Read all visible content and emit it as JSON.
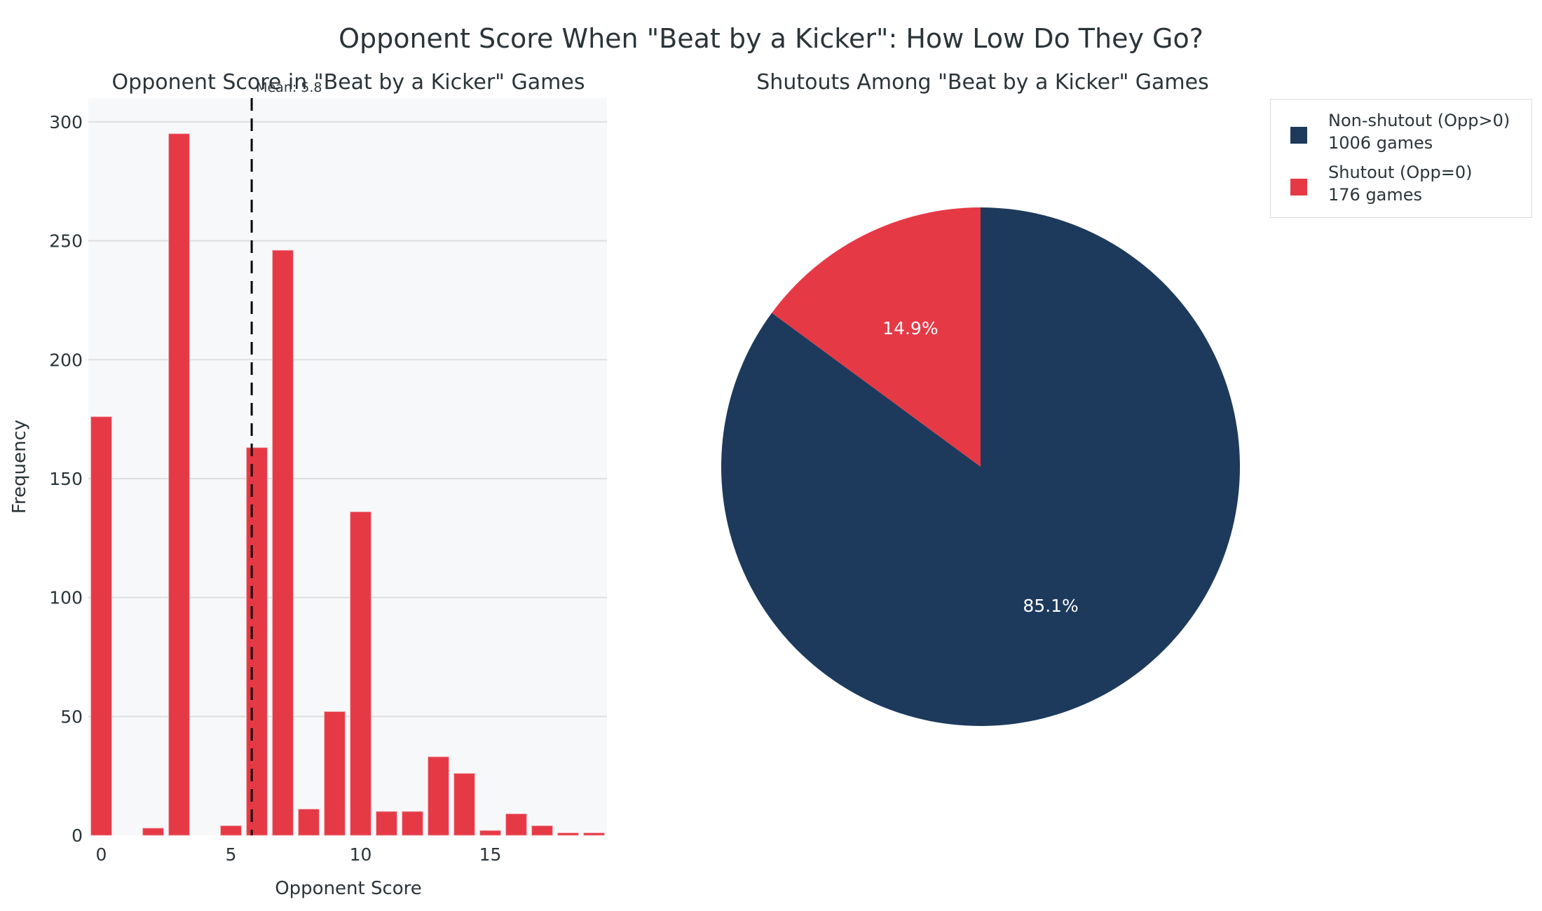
{
  "figure": {
    "title": "Opponent Score When \"Beat by a Kicker\": How Low Do They Go?"
  },
  "colors": {
    "bar": "#e63946",
    "pie_nonshutout": "#1d3a5c",
    "pie_shutout": "#e63946",
    "plot_bg": "#f7f8fa",
    "grid": "#dedfe1",
    "mean_line": "#000000",
    "text": "#2a3439"
  },
  "histogram": {
    "title": "Opponent Score in \"Beat by a Kicker\" Games",
    "xlabel": "Opponent Score",
    "ylabel": "Frequency",
    "mean_label": "Mean: 5.8",
    "mean_value": 5.8,
    "x_ticks": [
      "0",
      "5",
      "10",
      "15"
    ],
    "y_ticks": [
      "0",
      "50",
      "100",
      "150",
      "200",
      "250",
      "300"
    ]
  },
  "pie": {
    "title": "Shutouts Among \"Beat by a Kicker\" Games",
    "slices": [
      {
        "label": "Non-shutout (Opp>0)",
        "count_label": "1006 games",
        "value": 1006,
        "pct_label": "85.1%"
      },
      {
        "label": "Shutout (Opp=0)",
        "count_label": "176 games",
        "value": 176,
        "pct_label": "14.9%"
      }
    ]
  },
  "legend": {
    "items": [
      {
        "label": "Non-shutout (Opp>0)",
        "sub": "1006 games"
      },
      {
        "label": "Shutout (Opp=0)",
        "sub": "176 games"
      }
    ]
  },
  "chart_data": [
    {
      "type": "bar",
      "title": "Opponent Score in \"Beat by a Kicker\" Games",
      "xlabel": "Opponent Score",
      "ylabel": "Frequency",
      "categories": [
        0,
        1,
        2,
        3,
        4,
        5,
        6,
        7,
        8,
        9,
        10,
        11,
        12,
        13,
        14,
        15,
        16,
        17,
        18,
        19
      ],
      "values": [
        176,
        0,
        3,
        295,
        0,
        4,
        163,
        246,
        11,
        52,
        136,
        10,
        10,
        33,
        26,
        2,
        9,
        4,
        1,
        1
      ],
      "xlim": [
        -0.5,
        19.5
      ],
      "ylim": [
        0,
        310
      ],
      "x_ticks": [
        0,
        5,
        10,
        15
      ],
      "y_ticks": [
        0,
        50,
        100,
        150,
        200,
        250,
        300
      ],
      "grid": true,
      "annotations": [
        {
          "type": "vline",
          "x": 5.8,
          "style": "dashed",
          "label": "Mean: 5.8"
        }
      ]
    },
    {
      "type": "pie",
      "title": "Shutouts Among \"Beat by a Kicker\" Games",
      "categories": [
        "Non-shutout (Opp>0)",
        "Shutout (Opp=0)"
      ],
      "values": [
        1006,
        176
      ],
      "percentages": [
        85.1,
        14.9
      ],
      "legend_position": "upper right",
      "legend_entries": [
        "Non-shutout (Opp>0)\n1006 games",
        "Shutout (Opp=0)\n176 games"
      ]
    }
  ]
}
